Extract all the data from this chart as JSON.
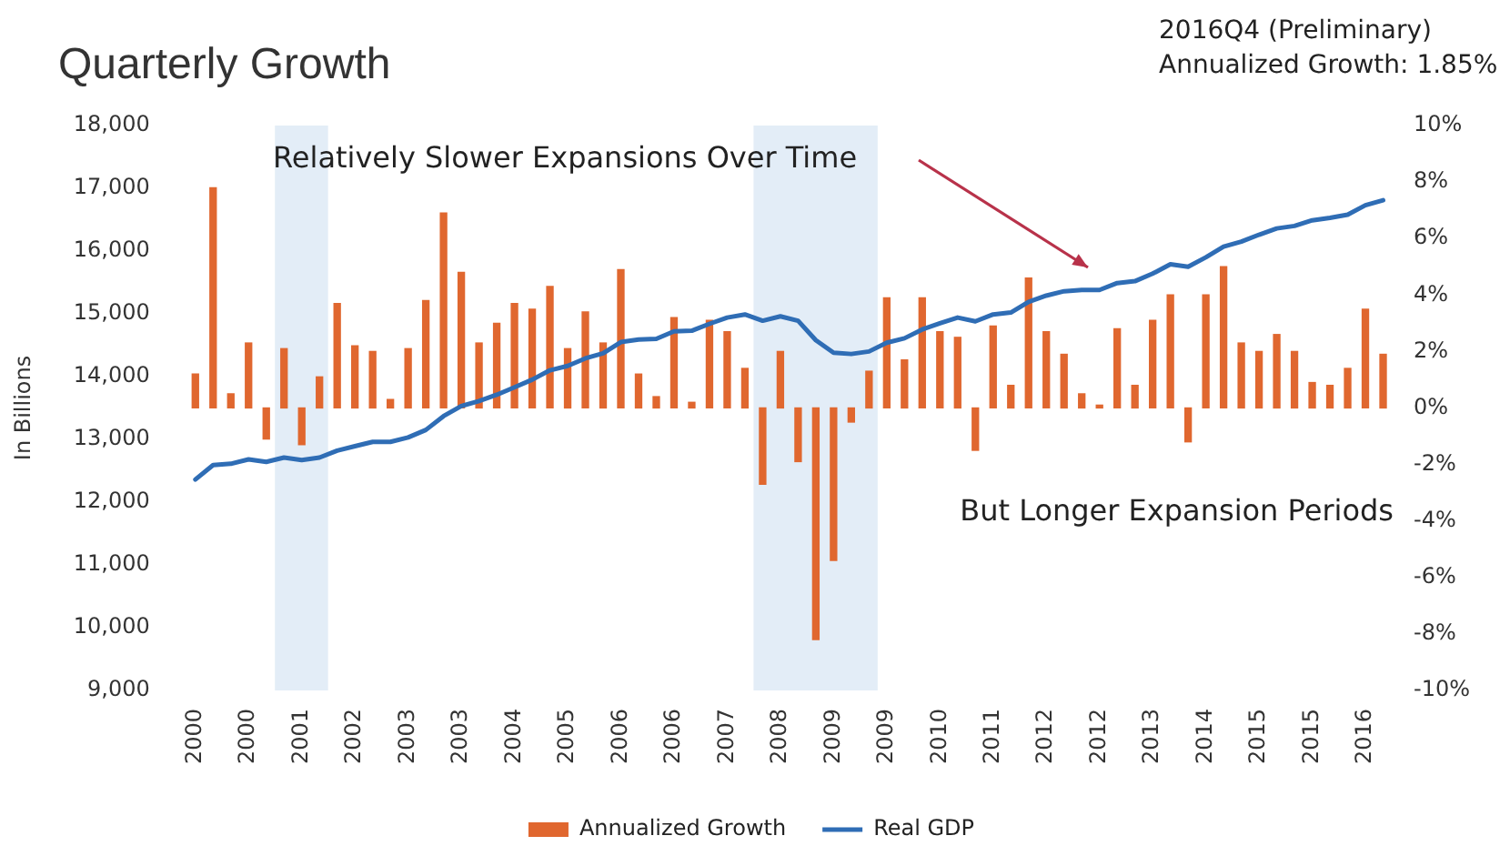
{
  "chart_data": {
    "type": "bar",
    "title": "Quarterly Growth",
    "ylabel": "In Billions",
    "annotations": [
      "Relatively Slower Expansions Over Time",
      "But Longer Expansion Periods",
      "2016Q4 (Preliminary)",
      "Annualized Growth: 1.85%"
    ],
    "x": [
      "2000-01",
      "2000-04",
      "2000-07",
      "2000-10",
      "2001-01",
      "2001-04",
      "2001-07",
      "2001-10",
      "2002-01",
      "2002-04",
      "2002-07",
      "2002-10",
      "2003-01",
      "2003-04",
      "2003-07",
      "2003-10",
      "2004-01",
      "2004-04",
      "2004-07",
      "2004-10",
      "2005-01",
      "2005-04",
      "2005-07",
      "2005-10",
      "2006-01",
      "2006-04",
      "2006-07",
      "2006-10",
      "2007-01",
      "2007-04",
      "2007-07",
      "2007-10",
      "2008-01",
      "2008-04",
      "2008-07",
      "2008-10",
      "2009-01",
      "2009-04",
      "2009-07",
      "2009-10",
      "2010-01",
      "2010-04",
      "2010-07",
      "2010-10",
      "2011-01",
      "2011-04",
      "2011-07",
      "2011-10",
      "2012-01",
      "2012-04",
      "2012-07",
      "2012-10",
      "2013-01",
      "2013-04",
      "2013-07",
      "2013-10",
      "2014-01",
      "2014-04",
      "2014-07",
      "2014-10",
      "2015-01",
      "2015-04",
      "2015-07",
      "2015-10",
      "2016-01",
      "2016-04",
      "2016-07",
      "2016-10"
    ],
    "xlim": [
      "1999-11-15",
      "2016-11-15"
    ],
    "xticks": [
      {
        "value": "2000-01",
        "label": "2000"
      },
      {
        "value": "2000-10",
        "label": "2000"
      },
      {
        "value": "2001-07",
        "label": "2001"
      },
      {
        "value": "2002-04",
        "label": "2002"
      },
      {
        "value": "2003-01",
        "label": "2003"
      },
      {
        "value": "2003-10",
        "label": "2003"
      },
      {
        "value": "2004-07",
        "label": "2004"
      },
      {
        "value": "2005-04",
        "label": "2005"
      },
      {
        "value": "2006-01",
        "label": "2006"
      },
      {
        "value": "2006-10",
        "label": "2006"
      },
      {
        "value": "2007-07",
        "label": "2007"
      },
      {
        "value": "2008-04",
        "label": "2008"
      },
      {
        "value": "2009-01",
        "label": "2009"
      },
      {
        "value": "2009-10",
        "label": "2009"
      },
      {
        "value": "2010-07",
        "label": "2010"
      },
      {
        "value": "2011-04",
        "label": "2011"
      },
      {
        "value": "2012-01",
        "label": "2012"
      },
      {
        "value": "2012-10",
        "label": "2012"
      },
      {
        "value": "2013-07",
        "label": "2013"
      },
      {
        "value": "2014-04",
        "label": "2014"
      },
      {
        "value": "2015-01",
        "label": "2015"
      },
      {
        "value": "2015-10",
        "label": "2015"
      },
      {
        "value": "2016-07",
        "label": "2016"
      }
    ],
    "ylim": [
      9000,
      18000
    ],
    "yticks": [
      {
        "value": 9000,
        "label": "9,000"
      },
      {
        "value": 10000,
        "label": "10,000"
      },
      {
        "value": 11000,
        "label": "11,000"
      },
      {
        "value": 12000,
        "label": "12,000"
      },
      {
        "value": 13000,
        "label": "13,000"
      },
      {
        "value": 14000,
        "label": "14,000"
      },
      {
        "value": 15000,
        "label": "15,000"
      },
      {
        "value": 16000,
        "label": "16,000"
      },
      {
        "value": 17000,
        "label": "17,000"
      },
      {
        "value": 18000,
        "label": "18,000"
      }
    ],
    "y2lim": [
      -10,
      10
    ],
    "y2ticks": [
      {
        "value": -10,
        "label": "-10%"
      },
      {
        "value": -8,
        "label": "-8%"
      },
      {
        "value": -6,
        "label": "-6%"
      },
      {
        "value": -4,
        "label": "-4%"
      },
      {
        "value": -2,
        "label": "-2%"
      },
      {
        "value": 0,
        "label": "0%"
      },
      {
        "value": 2,
        "label": "2%"
      },
      {
        "value": 4,
        "label": "4%"
      },
      {
        "value": 6,
        "label": "6%"
      },
      {
        "value": 8,
        "label": "8%"
      },
      {
        "value": 10,
        "label": "10%"
      }
    ],
    "bands": [
      {
        "axis": "x",
        "from": "2001-02-15",
        "to": "2001-11-15",
        "color": "#e3edf7"
      },
      {
        "axis": "x",
        "from": "2007-11-15",
        "to": "2009-08-15",
        "color": "#e3edf7"
      }
    ],
    "legend": "bottom",
    "series": [
      {
        "name": "Annualized Growth",
        "axis": "y2",
        "color": "#e0672f",
        "values": [
          1.2,
          7.8,
          0.5,
          2.3,
          -1.1,
          2.1,
          -1.3,
          1.1,
          3.7,
          2.2,
          2.0,
          0.3,
          2.1,
          3.8,
          6.9,
          4.8,
          2.3,
          3.0,
          3.7,
          3.5,
          4.3,
          2.1,
          3.4,
          2.3,
          4.9,
          1.2,
          0.4,
          3.2,
          0.2,
          3.1,
          2.7,
          1.4,
          -2.7,
          2.0,
          -1.9,
          -8.2,
          -5.4,
          -0.5,
          1.3,
          3.9,
          1.7,
          3.9,
          2.7,
          2.5,
          -1.5,
          2.9,
          0.8,
          4.6,
          2.7,
          1.9,
          0.5,
          0.1,
          2.8,
          0.8,
          3.1,
          4.0,
          -1.2,
          4.0,
          5.0,
          2.3,
          2.0,
          2.6,
          2.0,
          0.9,
          0.8,
          1.4,
          3.5,
          1.9
        ]
      },
      {
        "name": "Real GDP",
        "type": "line",
        "color": "#2f6db5",
        "values": [
          12360,
          12590,
          12610,
          12680,
          12640,
          12710,
          12670,
          12710,
          12820,
          12890,
          12960,
          12960,
          13030,
          13150,
          13370,
          13530,
          13610,
          13710,
          13830,
          13950,
          14100,
          14170,
          14290,
          14370,
          14550,
          14590,
          14600,
          14720,
          14730,
          14840,
          14940,
          14990,
          14890,
          14960,
          14890,
          14580,
          14380,
          14360,
          14400,
          14540,
          14610,
          14750,
          14850,
          14940,
          14880,
          14990,
          15020,
          15190,
          15290,
          15360,
          15380,
          15380,
          15490,
          15520,
          15640,
          15790,
          15750,
          15900,
          16070,
          16150,
          16260,
          16360,
          16400,
          16490,
          16530,
          16580,
          16730,
          16810
        ]
      }
    ]
  }
}
